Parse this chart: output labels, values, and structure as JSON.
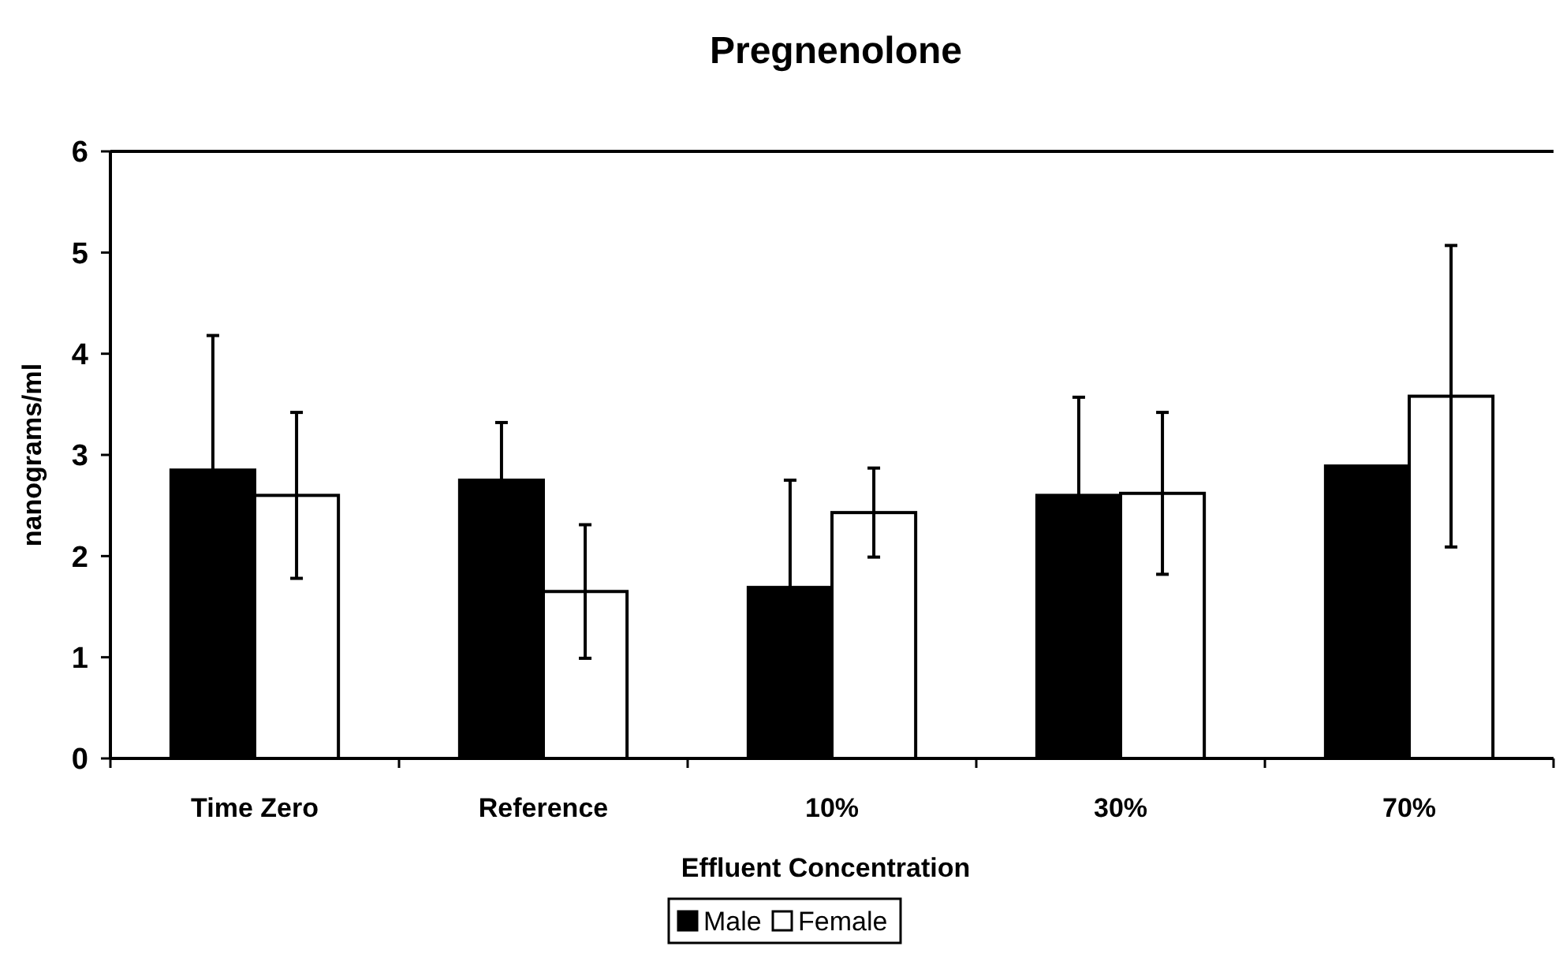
{
  "chart_data": {
    "type": "bar",
    "title": "Pregnenolone",
    "xlabel": "Effluent Concentration",
    "ylabel": "nanograms/ml",
    "categories": [
      "Time Zero",
      "Reference",
      "10%",
      "30%",
      "70%"
    ],
    "series": [
      {
        "name": "Male",
        "color": "#000000",
        "values": [
          2.85,
          2.75,
          1.69,
          2.6,
          2.89
        ],
        "errors": [
          1.33,
          0.57,
          1.06,
          0.97,
          null
        ]
      },
      {
        "name": "Female",
        "color": "#ffffff",
        "values": [
          2.6,
          1.65,
          2.43,
          2.62,
          3.58
        ],
        "errors": [
          0.82,
          0.66,
          0.44,
          0.8,
          1.49
        ]
      }
    ],
    "ylim": [
      0,
      6
    ],
    "yticks": [
      0,
      1,
      2,
      3,
      4,
      5,
      6
    ],
    "grid": false,
    "legend": "bottom"
  }
}
